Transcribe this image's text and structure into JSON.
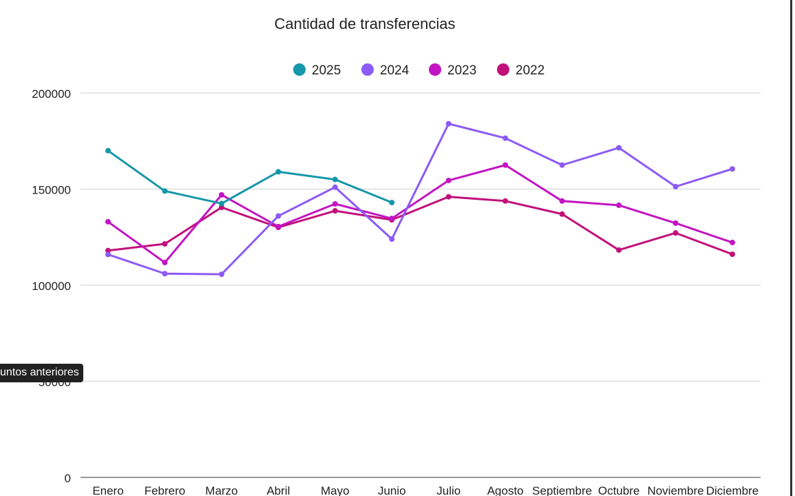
{
  "chart_data": {
    "type": "line",
    "title": "Cantidad de transferencias",
    "xlabel": "",
    "ylabel": "",
    "categories": [
      "Enero",
      "Febrero",
      "Marzo",
      "Abril",
      "Mayo",
      "Junio",
      "Julio",
      "Agosto",
      "Septiembre",
      "Octubre",
      "Noviembre",
      "Diciembre"
    ],
    "ylim": [
      0,
      200000
    ],
    "yticks": [
      "0",
      "50000",
      "100000",
      "150000",
      "200000"
    ],
    "grid": true,
    "legend_position": "top",
    "series": [
      {
        "name": "2025",
        "color": "#1497a8",
        "values": [
          170000,
          149000,
          142500,
          159000,
          155000,
          143000,
          null,
          null,
          null,
          null,
          null,
          null
        ]
      },
      {
        "name": "2024",
        "color": "#8c5af5",
        "values": [
          116000,
          106000,
          105700,
          136000,
          151000,
          124000,
          184000,
          176500,
          162500,
          171500,
          151300,
          160500
        ]
      },
      {
        "name": "2023",
        "color": "#c214c2",
        "values": [
          133000,
          111800,
          147000,
          130500,
          142300,
          134700,
          154500,
          162500,
          143800,
          141600,
          132300,
          122200
        ]
      },
      {
        "name": "2022",
        "color": "#c2107a",
        "values": [
          118000,
          121500,
          140500,
          130100,
          138700,
          134000,
          146000,
          143800,
          137000,
          118300,
          127200,
          116100
        ]
      }
    ]
  },
  "tooltip": "untos anteriores"
}
